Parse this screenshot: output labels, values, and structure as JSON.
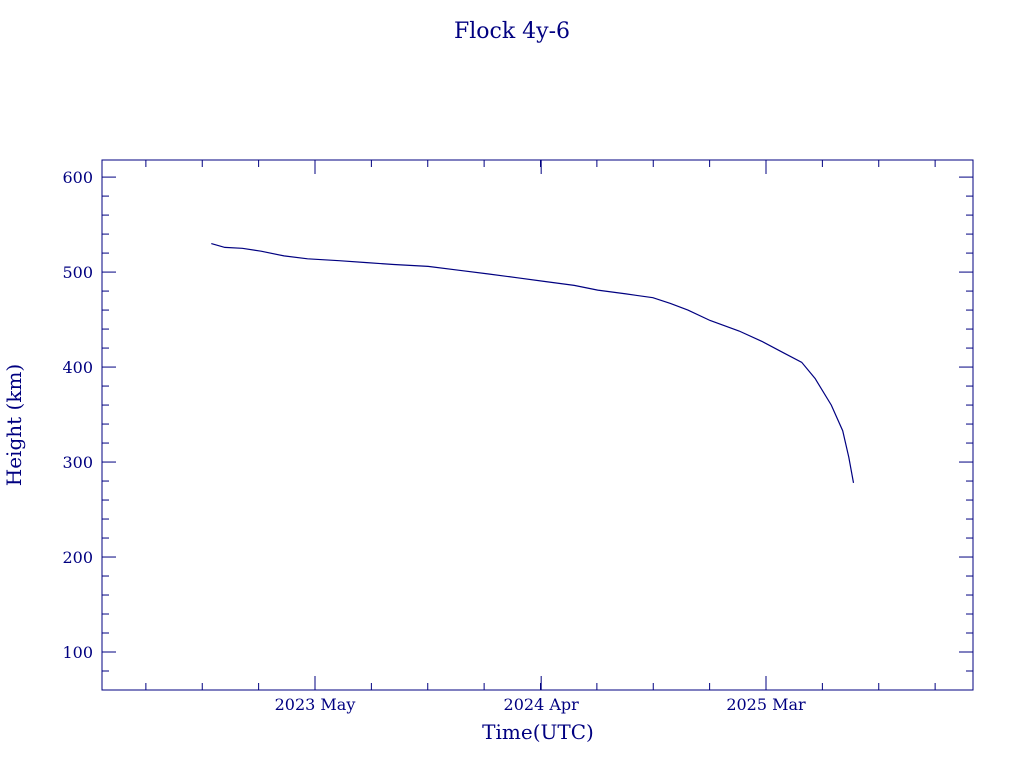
{
  "chart_data": {
    "type": "line",
    "title": "Flock 4y-6",
    "xlabel": "Time(UTC)",
    "ylabel": "Height (km)",
    "x_ticks": [
      "2023 May",
      "2024 Apr",
      "2025 Mar"
    ],
    "y_ticks": [
      100,
      200,
      300,
      400,
      500,
      600
    ],
    "ylim": [
      60,
      618
    ],
    "grid": false,
    "color": "#000080",
    "series": [
      {
        "x": [
          "2022-11-28",
          "2022-12-18",
          "2023-01-13",
          "2023-02-10",
          "2023-03-16",
          "2023-04-20",
          "2023-06-06",
          "2023-07-17",
          "2023-08-26",
          "2023-10-16",
          "2023-11-30",
          "2024-01-14",
          "2024-02-26",
          "2024-04-08",
          "2024-05-20",
          "2024-06-24",
          "2024-08-05",
          "2024-09-14",
          "2024-10-10",
          "2024-11-05",
          "2024-12-08",
          "2025-01-20",
          "2025-02-23",
          "2025-03-27",
          "2025-04-23",
          "2025-05-13",
          "2025-06-06",
          "2025-06-23",
          "2025-07-02",
          "2025-07-09"
        ],
        "values": [
          530,
          526,
          525,
          522,
          517,
          514,
          512,
          510,
          508,
          506,
          502,
          498,
          494,
          490,
          486,
          481,
          477,
          473,
          467,
          460,
          449,
          438,
          427,
          415,
          405,
          388,
          360,
          333,
          305,
          278
        ]
      }
    ]
  }
}
